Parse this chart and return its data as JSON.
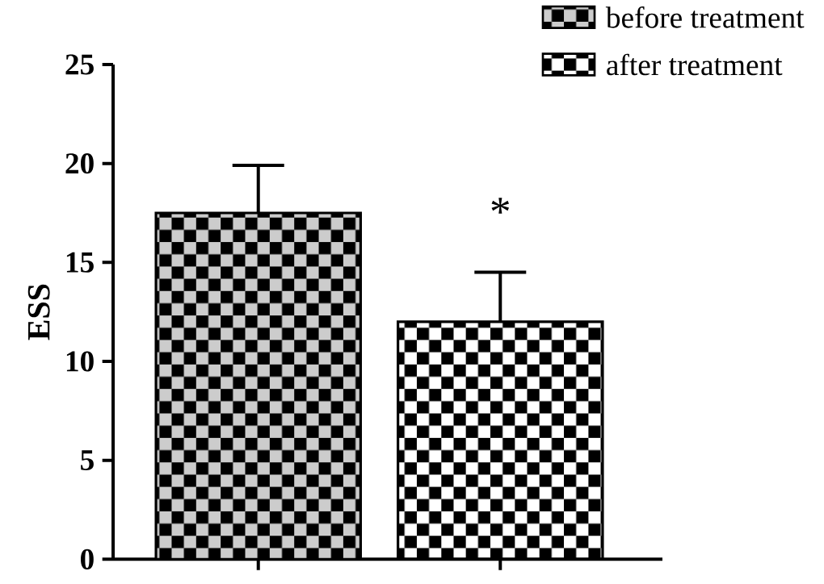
{
  "chart_data": {
    "type": "bar",
    "ylabel": "ESS",
    "categories": [
      null,
      null
    ],
    "series": [
      {
        "name": "before treatment",
        "color": "#000000",
        "values": [
          17.5,
          null
        ],
        "errors": [
          2.4,
          null
        ]
      },
      {
        "name": "after treatment",
        "color": "#000000",
        "values": [
          null,
          12.0
        ],
        "errors": [
          null,
          2.5
        ]
      }
    ],
    "ylim": [
      0,
      25
    ],
    "yticks": [
      0,
      5,
      10,
      15,
      20,
      25
    ],
    "legend": "top right",
    "annotations": [
      "*"
    ]
  }
}
